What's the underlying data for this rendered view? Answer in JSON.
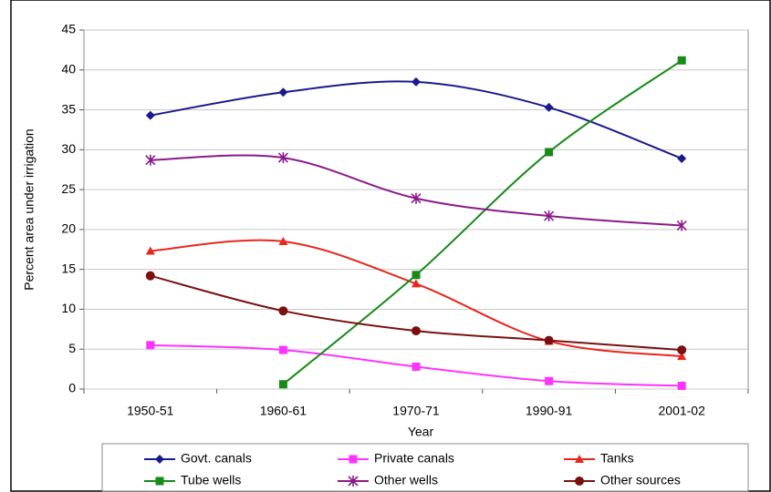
{
  "chart_data": {
    "type": "line",
    "x_label": "Year",
    "y_label": "Percent area under irrigation",
    "categories": [
      "1950-51",
      "1960-61",
      "1970-71",
      "1990-91",
      "2001-02"
    ],
    "ylim": [
      0,
      45
    ],
    "yticks": [
      0,
      5,
      10,
      15,
      20,
      25,
      30,
      35,
      40,
      45
    ],
    "grid": true,
    "smooth": true,
    "legend": "bottom",
    "series": [
      {
        "name": "Govt. canals",
        "color": "#1a1a8c",
        "marker": "diamond",
        "values": [
          34.3,
          37.2,
          38.5,
          35.3,
          28.9
        ]
      },
      {
        "name": "Private canals",
        "color": "#ff33ff",
        "marker": "square",
        "values": [
          5.5,
          4.9,
          2.8,
          1.0,
          0.4
        ]
      },
      {
        "name": "Tanks",
        "color": "#e8261c",
        "marker": "triangle",
        "values": [
          17.3,
          18.5,
          13.2,
          6.0,
          4.1
        ]
      },
      {
        "name": "Tube wells",
        "color": "#178a17",
        "marker": "square",
        "values": [
          null,
          0.6,
          14.3,
          29.7,
          41.2
        ]
      },
      {
        "name": "Other wells",
        "color": "#8a1a8a",
        "marker": "star",
        "values": [
          28.7,
          29.0,
          23.9,
          21.7,
          20.5
        ]
      },
      {
        "name": "Other sources",
        "color": "#7a1010",
        "marker": "circle",
        "values": [
          14.2,
          9.8,
          7.3,
          6.1,
          4.9
        ]
      }
    ]
  }
}
